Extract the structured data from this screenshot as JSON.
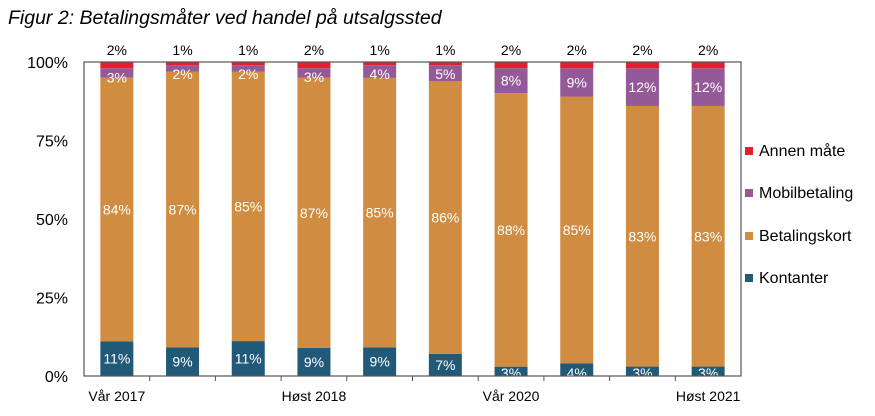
{
  "chart_data": {
    "type": "bar",
    "stacked": true,
    "title": "Figur 2: Betalingsmåter ved handel på utsalgssted",
    "xlabel": "",
    "ylabel": "",
    "ylim": [
      0,
      100
    ],
    "yticks": [
      "0%",
      "25%",
      "50%",
      "75%",
      "100%"
    ],
    "categories": [
      "Vår 2017",
      "",
      "",
      "Høst 2018",
      "",
      "",
      "Vår 2020",
      "",
      "",
      "Høst 2021"
    ],
    "series": [
      {
        "name": "Kontanter",
        "color": "#215a78",
        "values": [
          11,
          9,
          11,
          9,
          9,
          7,
          3,
          4,
          3,
          3
        ]
      },
      {
        "name": "Betalingskort",
        "color": "#d08c41",
        "values": [
          84,
          87,
          85,
          87,
          85,
          86,
          88,
          85,
          83,
          83
        ]
      },
      {
        "name": "Mobilbetaling",
        "color": "#935a97",
        "values": [
          3,
          2,
          2,
          3,
          4,
          5,
          8,
          9,
          12,
          12
        ]
      },
      {
        "name": "Annen måte",
        "color": "#e0202f",
        "values": [
          2,
          1,
          1,
          2,
          1,
          1,
          2,
          2,
          2,
          2
        ]
      }
    ],
    "legend": [
      "Annen måte",
      "Mobilbetaling",
      "Betalingskort",
      "Kontanter"
    ],
    "legend_position": "right",
    "grid": false
  }
}
